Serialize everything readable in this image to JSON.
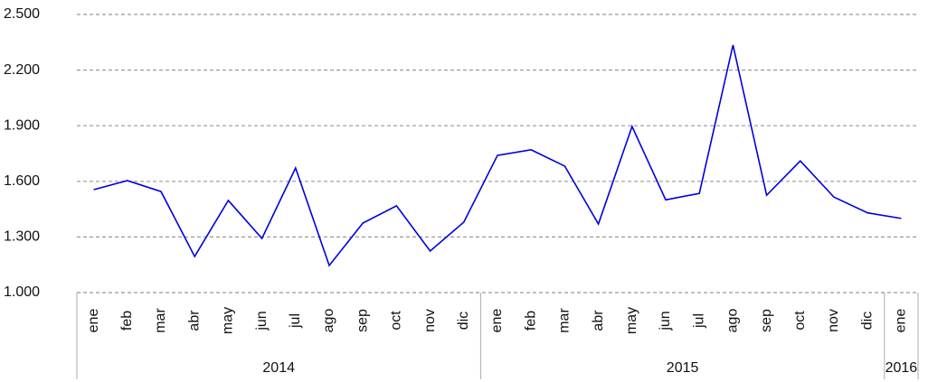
{
  "chart_data": {
    "type": "line",
    "groups": [
      {
        "label": "2014",
        "months": [
          "ene",
          "feb",
          "mar",
          "abr",
          "may",
          "jun",
          "jul",
          "ago",
          "sep",
          "oct",
          "nov",
          "dic"
        ]
      },
      {
        "label": "2015",
        "months": [
          "ene",
          "feb",
          "mar",
          "abr",
          "may",
          "jun",
          "jul",
          "ago",
          "sep",
          "oct",
          "nov",
          "dic"
        ]
      },
      {
        "label": "2016",
        "months": [
          "ene"
        ]
      }
    ],
    "values": [
      1555,
      1604,
      1545,
      1195,
      1497,
      1292,
      1672,
      1146,
      1375,
      1468,
      1224,
      1380,
      1740,
      1770,
      1682,
      1370,
      1896,
      1500,
      1535,
      2335,
      1525,
      1710,
      1515,
      1430,
      1400
    ],
    "color": "#0000dd",
    "ylim": [
      1000,
      2500
    ],
    "yticks": [
      {
        "value": 1000,
        "label": "1.000"
      },
      {
        "value": 1300,
        "label": "1.300"
      },
      {
        "value": 1600,
        "label": "1.600"
      },
      {
        "value": 1900,
        "label": "1.900"
      },
      {
        "value": 2200,
        "label": "2.200"
      },
      {
        "value": 2500,
        "label": "2.500"
      }
    ],
    "grid": true
  }
}
